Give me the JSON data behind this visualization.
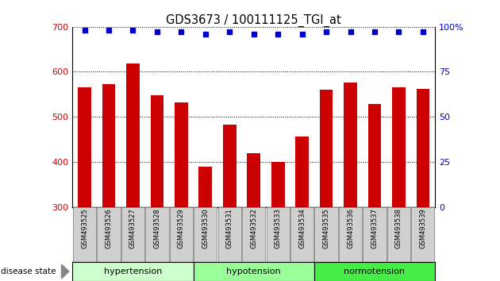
{
  "title": "GDS3673 / 100111125_TGI_at",
  "samples": [
    "GSM493525",
    "GSM493526",
    "GSM493527",
    "GSM493528",
    "GSM493529",
    "GSM493530",
    "GSM493531",
    "GSM493532",
    "GSM493533",
    "GSM493534",
    "GSM493535",
    "GSM493536",
    "GSM493537",
    "GSM493538",
    "GSM493539"
  ],
  "counts": [
    565,
    572,
    618,
    548,
    533,
    390,
    482,
    420,
    400,
    457,
    560,
    577,
    528,
    565,
    562
  ],
  "percentile_ranks": [
    98,
    98,
    98,
    97,
    97,
    96,
    97,
    96,
    96,
    96,
    97,
    97,
    97,
    97,
    97
  ],
  "groups": [
    {
      "label": "hypertension",
      "start": 0,
      "end": 5,
      "color": "#ccffcc"
    },
    {
      "label": "hypotension",
      "start": 5,
      "end": 10,
      "color": "#99ff99"
    },
    {
      "label": "normotension",
      "start": 10,
      "end": 15,
      "color": "#44ee44"
    }
  ],
  "ylim_left": [
    300,
    700
  ],
  "ylim_right": [
    0,
    100
  ],
  "yticks_left": [
    300,
    400,
    500,
    600,
    700
  ],
  "yticks_right": [
    0,
    25,
    50,
    75,
    100
  ],
  "bar_color": "#cc0000",
  "dot_color": "#0000cc",
  "tick_label_color_left": "#cc0000",
  "tick_label_color_right": "#0000cc",
  "legend_count_color": "#cc0000",
  "legend_pct_color": "#0000cc",
  "bar_width": 0.55,
  "xtick_bg": "#d0d0d0",
  "xtick_edge": "#888888"
}
